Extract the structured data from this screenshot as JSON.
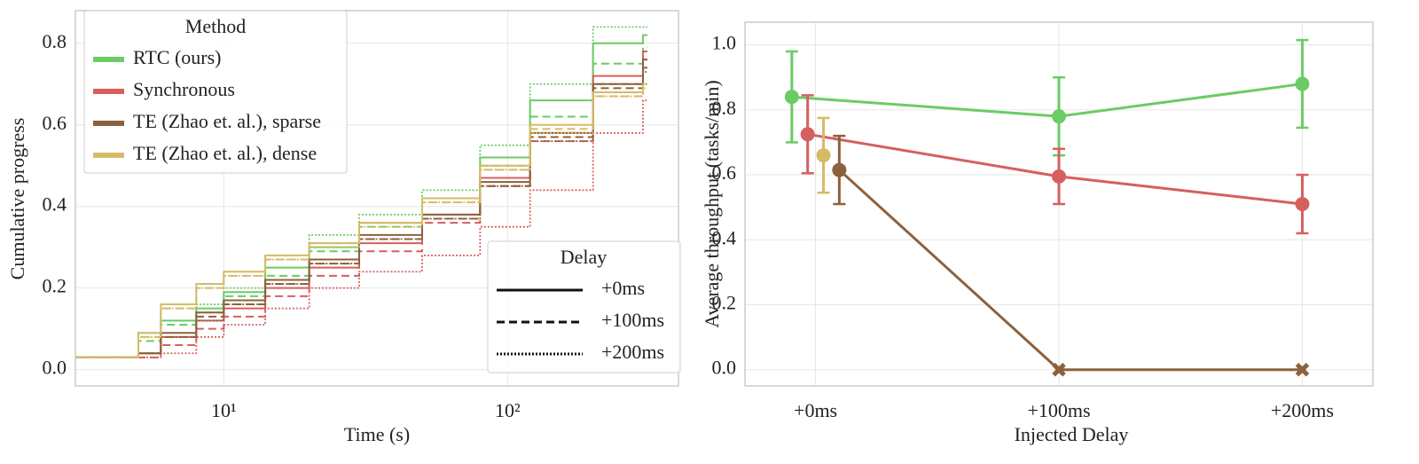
{
  "chart_data": [
    {
      "type": "step",
      "xlabel": "Time (s)",
      "ylabel": "Cumulative progress",
      "xscale": "log",
      "xlim": [
        3,
        400
      ],
      "ylim": [
        -0.04,
        0.88
      ],
      "xticks": [
        {
          "value": 10,
          "label": "10¹"
        },
        {
          "value": 100,
          "label": "10²"
        }
      ],
      "yticks": [
        {
          "value": 0,
          "label": "0.0"
        },
        0.2,
        0.4,
        0.6,
        0.8
      ],
      "grid": true,
      "legend_title": "Method",
      "delay_legend_title": "Delay",
      "delays": [
        {
          "name": "+0ms",
          "dash": "solid"
        },
        {
          "name": "+100ms",
          "dash": "dashed"
        },
        {
          "name": "+200ms",
          "dash": "dotted"
        }
      ],
      "x": [
        3,
        5,
        6,
        8,
        10,
        14,
        20,
        30,
        50,
        80,
        120,
        200,
        300
      ],
      "series": [
        {
          "name": "RTC (ours)",
          "color": "#6acc64",
          "runs": [
            [
              0.03,
              0.09,
              0.12,
              0.15,
              0.19,
              0.25,
              0.3,
              0.36,
              0.42,
              0.52,
              0.66,
              0.8,
              0.82
            ],
            [
              0.03,
              0.07,
              0.11,
              0.14,
              0.18,
              0.23,
              0.29,
              0.35,
              0.42,
              0.5,
              0.62,
              0.75,
              0.79
            ],
            [
              0.03,
              0.08,
              0.12,
              0.16,
              0.2,
              0.27,
              0.33,
              0.38,
              0.44,
              0.55,
              0.7,
              0.84,
              0.84
            ]
          ]
        },
        {
          "name": "Synchronous",
          "color": "#d65f5f",
          "runs": [
            [
              0.03,
              0.04,
              0.08,
              0.12,
              0.15,
              0.2,
              0.25,
              0.31,
              0.38,
              0.47,
              0.58,
              0.72,
              0.78
            ],
            [
              0.03,
              0.03,
              0.06,
              0.1,
              0.13,
              0.18,
              0.23,
              0.29,
              0.36,
              0.45,
              0.56,
              0.7,
              0.76
            ],
            [
              0.03,
              0.03,
              0.04,
              0.08,
              0.11,
              0.15,
              0.2,
              0.24,
              0.28,
              0.35,
              0.44,
              0.58,
              0.66
            ]
          ]
        },
        {
          "name": "TE (Zhao et. al.), sparse",
          "color": "#8c613c",
          "runs": [
            [
              0.03,
              0.04,
              0.09,
              0.14,
              0.17,
              0.22,
              0.27,
              0.33,
              0.38,
              0.46,
              0.58,
              0.7,
              0.76
            ],
            [
              0.03,
              0.04,
              0.08,
              0.13,
              0.16,
              0.21,
              0.26,
              0.32,
              0.37,
              0.45,
              0.57,
              0.69,
              0.74
            ],
            [
              0.03,
              0.04,
              0.08,
              0.12,
              0.16,
              0.21,
              0.26,
              0.32,
              0.37,
              0.45,
              0.56,
              0.68,
              0.73
            ]
          ]
        },
        {
          "name": "TE (Zhao et. al.), dense",
          "color": "#d5bb67",
          "runs": [
            [
              0.03,
              0.09,
              0.16,
              0.21,
              0.24,
              0.28,
              0.31,
              0.36,
              0.42,
              0.5,
              0.6,
              0.68,
              0.7
            ],
            [
              0.03,
              0.08,
              0.15,
              0.2,
              0.23,
              0.27,
              0.31,
              0.36,
              0.41,
              0.49,
              0.59,
              0.67,
              0.7
            ],
            [
              0.03,
              0.08,
              0.15,
              0.2,
              0.23,
              0.27,
              0.3,
              0.35,
              0.41,
              0.49,
              0.58,
              0.67,
              0.69
            ]
          ]
        }
      ]
    },
    {
      "type": "pointplot",
      "xlabel": "Injected Delay",
      "ylabel": "Average throughput (tasks/min)",
      "categories": [
        "+0ms",
        "+100ms",
        "+200ms"
      ],
      "ylim": [
        -0.05,
        1.07
      ],
      "yticks": [
        {
          "value": 0,
          "label": "0.0"
        },
        0.2,
        0.4,
        0.6,
        0.8,
        {
          "value": 1,
          "label": "1.0"
        }
      ],
      "grid": true,
      "series": [
        {
          "color": "#6acc64",
          "values": [
            0.84,
            0.78,
            0.88
          ],
          "errors": [
            0.14,
            0.12,
            0.135
          ],
          "markers": [
            "o",
            "o",
            "o"
          ]
        },
        {
          "color": "#d65f5f",
          "values": [
            0.725,
            0.595,
            0.51
          ],
          "errors": [
            0.12,
            0.085,
            0.09
          ],
          "markers": [
            "o",
            "o",
            "o"
          ]
        },
        {
          "color": "#d5bb67",
          "values": [
            0.66,
            null,
            null
          ],
          "errors": [
            0.115,
            null,
            null
          ],
          "markers": [
            "o",
            null,
            null
          ]
        },
        {
          "color": "#8c613c",
          "values": [
            0.615,
            0,
            0
          ],
          "errors": [
            0.105,
            null,
            null
          ],
          "markers": [
            "o",
            "X",
            "X"
          ]
        }
      ]
    }
  ]
}
